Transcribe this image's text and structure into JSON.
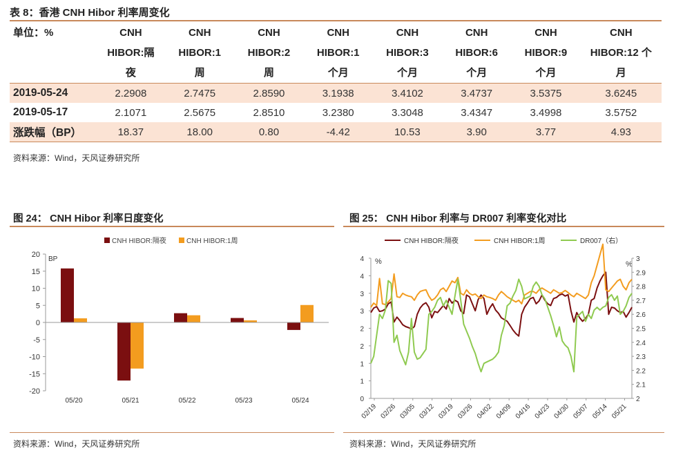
{
  "table_title": "表 8：香港 CNH Hibor 利率周变化",
  "table": {
    "header_first": "单位：%",
    "headers": [
      [
        "CNH",
        "HIBOR:隔",
        "夜"
      ],
      [
        "CNH",
        "HIBOR:1",
        "周"
      ],
      [
        "CNH",
        "HIBOR:2",
        "周"
      ],
      [
        "CNH",
        "HIBOR:1",
        "个月"
      ],
      [
        "CNH",
        "HIBOR:3",
        "个月"
      ],
      [
        "CNH",
        "HIBOR:6",
        "个月"
      ],
      [
        "CNH",
        "HIBOR:9",
        "个月"
      ],
      [
        "CNH",
        "HIBOR:12 个",
        "月"
      ]
    ],
    "rows": [
      {
        "label": "2019-05-24",
        "values": [
          "2.2908",
          "2.7475",
          "2.8590",
          "3.1938",
          "3.4102",
          "3.4737",
          "3.5375",
          "3.6245"
        ]
      },
      {
        "label": "2019-05-17",
        "values": [
          "2.1071",
          "2.5675",
          "2.8510",
          "3.2380",
          "3.3048",
          "3.4347",
          "3.4998",
          "3.5752"
        ]
      },
      {
        "label": "涨跌幅（BP）",
        "values": [
          "18.37",
          "18.00",
          "0.80",
          "-4.42",
          "10.53",
          "3.90",
          "3.77",
          "4.93"
        ]
      }
    ]
  },
  "table_source": "资料来源：Wind，天风证券研究所",
  "chart1_title": "图 24：  CNH Hibor  利率日度变化",
  "chart2_title": "图 25：  CNH Hibor  利率与 DR007  利率变化对比",
  "source_left": "资料来源：Wind，天风证券研究所",
  "source_right": "资料来源：Wind，天风证券研究所",
  "colors": {
    "dark_red": "#7b0f10",
    "orange": "#f39c1f",
    "green": "#8fca50",
    "rule": "#c8885a",
    "shade": "#fbe3d4"
  },
  "chart_data": [
    {
      "type": "bar",
      "ylabel": "BP",
      "ylim": [
        -20,
        20
      ],
      "yticks": [
        20,
        15,
        10,
        5,
        0,
        -5,
        -10,
        -15,
        -20
      ],
      "categories": [
        "05/20",
        "05/21",
        "05/22",
        "05/23",
        "05/24"
      ],
      "legend_position": "top",
      "series": [
        {
          "name": "CNH HIBOR:隔夜",
          "color": "#7b0f10",
          "values": [
            15.8,
            -17.0,
            2.7,
            1.3,
            -2.2
          ]
        },
        {
          "name": "CNH HIBOR:1周",
          "color": "#f39c1f",
          "values": [
            1.2,
            -13.5,
            2.1,
            0.6,
            5.1
          ]
        }
      ]
    },
    {
      "type": "line",
      "ylabel_left": "%",
      "ylabel_right": "%",
      "ylim_left": [
        0,
        4
      ],
      "yticks_left": [
        0,
        0.5,
        1,
        1.5,
        2,
        2.5,
        3,
        3.5,
        4
      ],
      "yticklabels_left": [
        "0",
        "1",
        "1",
        "2",
        "2",
        "3",
        "3",
        "4",
        "4"
      ],
      "ylim_right": [
        2,
        3
      ],
      "yticks_right": [
        "3",
        "2.9",
        "2.8",
        "2.7",
        "2.6",
        "2.5",
        "2.4",
        "2.3",
        "2.2",
        "2.1",
        "2"
      ],
      "x_ticks": [
        "02/19",
        "02/26",
        "03/05",
        "03/12",
        "03/19",
        "03/26",
        "04/02",
        "04/09",
        "04/16",
        "04/23",
        "04/30",
        "05/07",
        "05/14",
        "05/21"
      ],
      "legend_position": "top",
      "series": [
        {
          "name": "CNH HIBOR:隔夜",
          "axis": "left",
          "color": "#7b0f10",
          "values": [
            2.45,
            2.58,
            2.62,
            2.48,
            2.5,
            2.55,
            2.7,
            2.75,
            2.18,
            2.32,
            2.22,
            2.1,
            2.05,
            2.02,
            1.98,
            2.05,
            2.4,
            2.58,
            2.68,
            2.73,
            2.6,
            2.3,
            2.48,
            2.45,
            2.55,
            2.65,
            2.55,
            2.85,
            2.72,
            2.8,
            2.75,
            2.5,
            2.42,
            2.95,
            2.9,
            2.7,
            2.5,
            2.82,
            2.95,
            2.85,
            2.4,
            2.58,
            2.7,
            2.52,
            2.43,
            2.3,
            2.25,
            2.2,
            2.08,
            1.95,
            1.85,
            1.78,
            2.4,
            2.6,
            2.72,
            2.85,
            2.88,
            2.7,
            2.78,
            2.95,
            2.8,
            2.7,
            2.65,
            2.85,
            2.88,
            2.95,
            2.98,
            2.92,
            2.96,
            2.5,
            2.18,
            2.45,
            2.3,
            2.2,
            2.28,
            2.4,
            2.8,
            2.85,
            3.15,
            3.35,
            3.5,
            3.6,
            2.4,
            2.6,
            2.58,
            2.5,
            2.45,
            2.48,
            2.32,
            2.45,
            2.6
          ]
        },
        {
          "name": "CNH HIBOR:1周",
          "axis": "left",
          "color": "#f39c1f",
          "values": [
            2.6,
            2.72,
            2.65,
            3.42,
            2.7,
            2.68,
            2.75,
            2.85,
            3.55,
            2.9,
            2.88,
            3.0,
            2.95,
            2.92,
            2.9,
            2.8,
            2.95,
            3.05,
            3.08,
            3.1,
            2.92,
            2.8,
            2.85,
            2.95,
            3.1,
            3.15,
            3.05,
            3.2,
            3.35,
            3.3,
            3.45,
            3.0,
            2.95,
            3.1,
            3.0,
            2.95,
            2.98,
            2.9,
            2.85,
            2.95,
            2.9,
            2.88,
            2.85,
            2.8,
            2.95,
            3.05,
            2.98,
            2.9,
            2.85,
            2.8,
            2.75,
            2.8,
            2.7,
            2.95,
            3.0,
            3.05,
            3.05,
            3.0,
            3.1,
            3.15,
            3.1,
            3.05,
            3.0,
            3.1,
            3.05,
            3.0,
            3.02,
            3.08,
            3.02,
            2.95,
            2.9,
            3.0,
            2.95,
            2.9,
            2.85,
            2.95,
            3.3,
            3.5,
            3.8,
            4.1,
            4.4,
            3.1,
            3.05,
            3.15,
            3.25,
            3.35,
            3.4,
            3.2,
            3.1,
            3.3,
            3.4
          ]
        },
        {
          "name": "DR007（右）",
          "axis": "right",
          "color": "#8fca50",
          "values": [
            2.25,
            2.3,
            2.45,
            2.6,
            2.57,
            2.63,
            2.84,
            2.82,
            2.4,
            2.45,
            2.34,
            2.29,
            2.24,
            2.33,
            2.57,
            2.33,
            2.28,
            2.29,
            2.32,
            2.35,
            2.6,
            2.62,
            2.65,
            2.7,
            2.72,
            2.66,
            2.7,
            2.65,
            2.6,
            2.73,
            2.85,
            2.7,
            2.53,
            2.48,
            2.43,
            2.37,
            2.32,
            2.25,
            2.19,
            2.25,
            2.26,
            2.27,
            2.28,
            2.3,
            2.33,
            2.45,
            2.52,
            2.66,
            2.68,
            2.73,
            2.77,
            2.85,
            2.8,
            2.71,
            2.72,
            2.73,
            2.8,
            2.83,
            2.8,
            2.74,
            2.71,
            2.65,
            2.59,
            2.52,
            2.44,
            2.51,
            2.41,
            2.38,
            2.36,
            2.3,
            2.19,
            2.58,
            2.6,
            2.62,
            2.55,
            2.6,
            2.57,
            2.63,
            2.65,
            2.63,
            2.65,
            2.66,
            2.72,
            2.74,
            2.7,
            2.73,
            2.6,
            2.62,
            2.66,
            2.72,
            2.75
          ]
        }
      ]
    }
  ]
}
